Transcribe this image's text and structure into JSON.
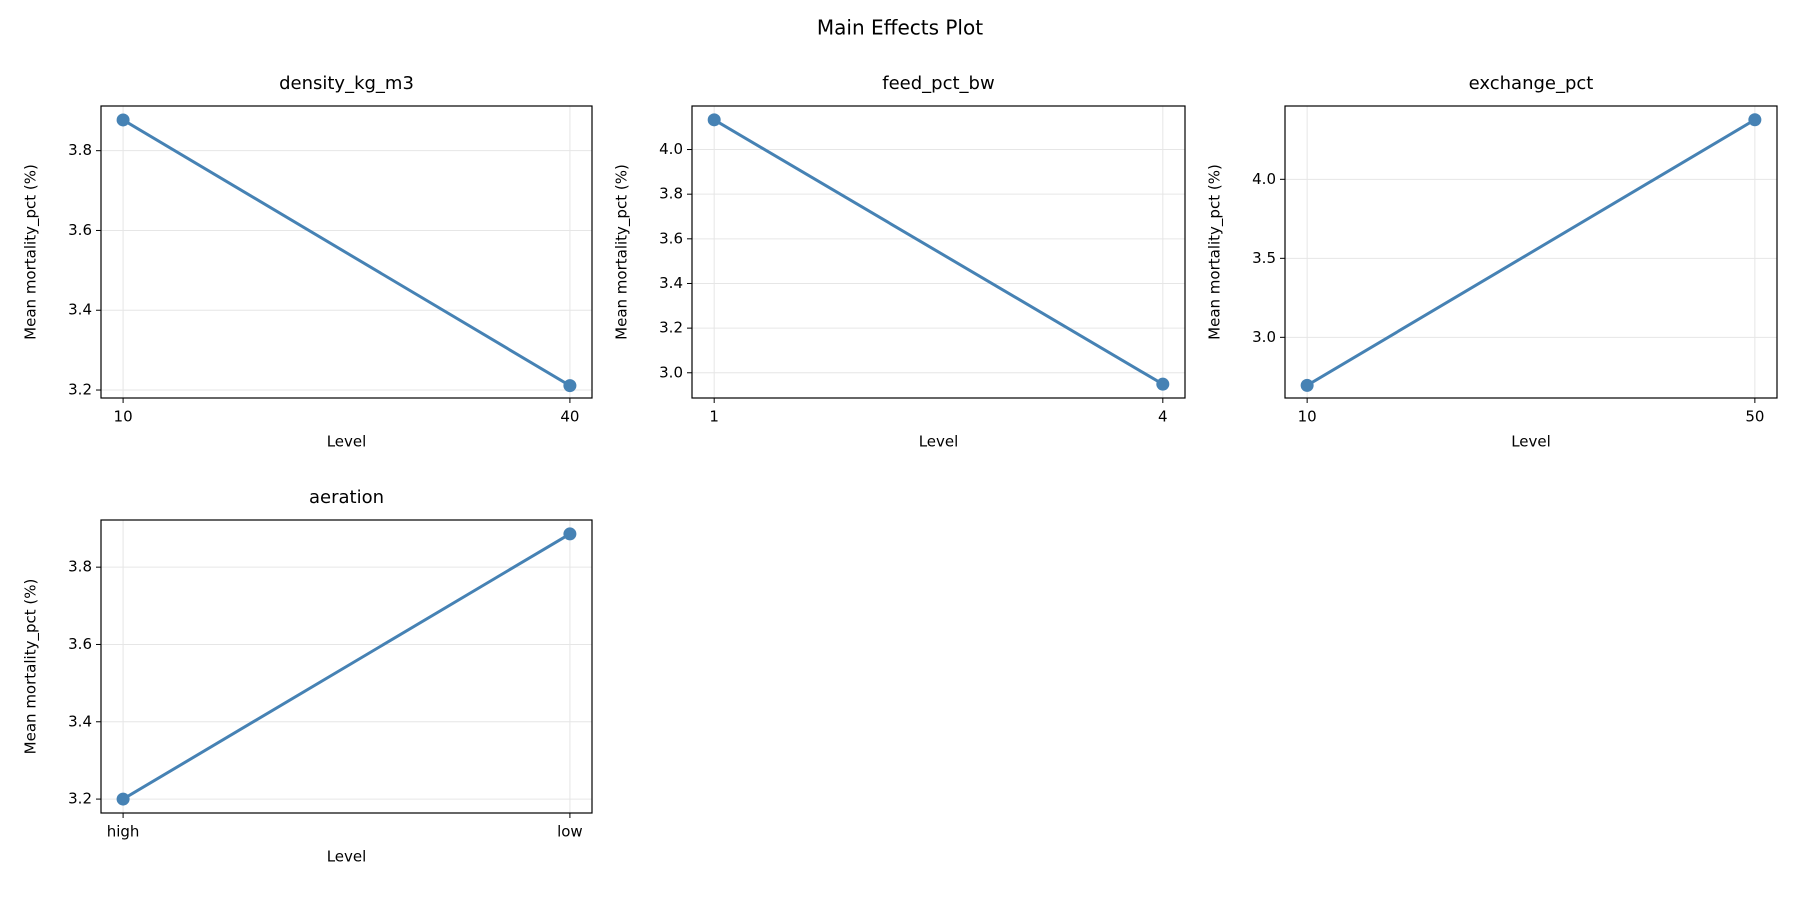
{
  "title": "Main Effects Plot",
  "chart_data": [
    {
      "type": "line",
      "title": "density_kg_m3",
      "x_label": "Level",
      "y_label": "Mean mortality_pct (%)",
      "categories": [
        "10",
        "40"
      ],
      "values": [
        3.877,
        3.211
      ],
      "color": "#4682b4",
      "ylim": [
        3.18,
        3.912
      ],
      "yticks": [
        3.2,
        3.4,
        3.6,
        3.8
      ],
      "grid": true
    },
    {
      "type": "line",
      "title": "feed_pct_bw",
      "x_label": "Level",
      "y_label": "Mean mortality_pct (%)",
      "categories": [
        "1",
        "4"
      ],
      "values": [
        4.133,
        2.949
      ],
      "color": "#4682b4",
      "ylim": [
        2.887,
        4.195
      ],
      "yticks": [
        {
          "value": 3,
          "label": "3.0"
        },
        3.2,
        3.4,
        3.6,
        3.8,
        {
          "value": 4,
          "label": "4.0"
        }
      ],
      "grid": true
    },
    {
      "type": "line",
      "title": "exchange_pct",
      "x_label": "Level",
      "y_label": "Mean mortality_pct (%)",
      "categories": [
        "10",
        "50"
      ],
      "values": [
        2.696,
        4.377
      ],
      "color": "#4682b4",
      "ylim": [
        2.616,
        4.464
      ],
      "yticks": [
        {
          "value": 3,
          "label": "3.0"
        },
        3.5,
        {
          "value": 4,
          "label": "4.0"
        }
      ],
      "grid": true
    },
    {
      "type": "line",
      "title": "aeration",
      "x_label": "Level",
      "y_label": "Mean mortality_pct (%)",
      "categories": [
        "high",
        "low"
      ],
      "values": [
        3.2,
        3.886
      ],
      "color": "#4682b4",
      "ylim": [
        3.164,
        3.922
      ],
      "yticks": [
        3.2,
        3.4,
        3.6,
        3.8
      ],
      "grid": true
    }
  ]
}
